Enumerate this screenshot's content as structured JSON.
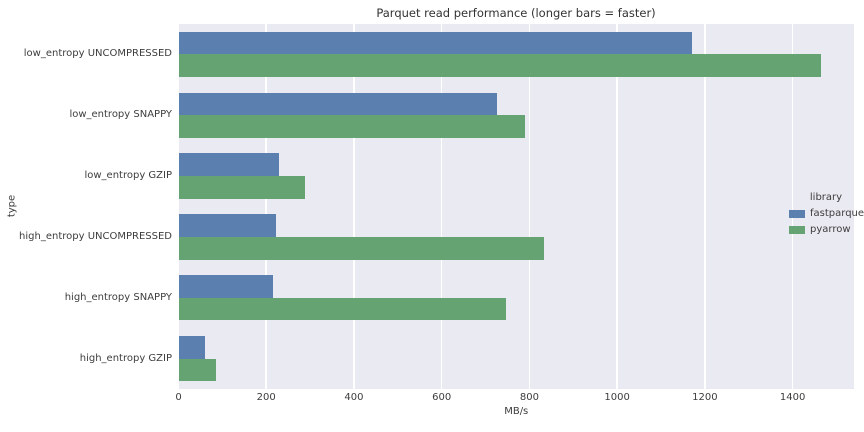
{
  "chart_data": {
    "type": "bar",
    "orientation": "horizontal",
    "title": "Parquet read performance (longer bars = faster)",
    "xlabel": "MB/s",
    "ylabel": "type",
    "legend_title": "library",
    "legend_position": "center right",
    "grid": true,
    "xlim": [
      0,
      1540
    ],
    "xticks": [
      0,
      200,
      400,
      600,
      800,
      1000,
      1200,
      1400
    ],
    "categories": [
      "low_entropy UNCOMPRESSED",
      "low_entropy SNAPPY",
      "low_entropy GZIP",
      "high_entropy UNCOMPRESSED",
      "high_entropy SNAPPY",
      "high_entropy GZIP"
    ],
    "series": [
      {
        "name": "fastparquet",
        "color": "#5b7fae",
        "values": [
          1170,
          725,
          230,
          222,
          215,
          60
        ]
      },
      {
        "name": "pyarrow",
        "color": "#66a373",
        "values": [
          1465,
          790,
          288,
          833,
          747,
          85
        ]
      }
    ]
  },
  "colors": {
    "figure_bg": "#ffffff",
    "axes_bg": "#eaeaf2",
    "grid": "#ffffff",
    "text": "#3d3d3d"
  }
}
